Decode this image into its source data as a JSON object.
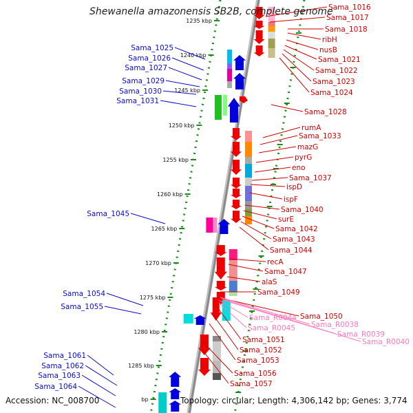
{
  "title": "Shewanella amazonensis SB2B, complete genome",
  "accession_text": "Accession: NC_008700",
  "topology_text": "Topology: circular; Length: 4,306,142 bp; Genes: 3,774",
  "colors": {
    "left_label": "#0a0acc",
    "right_label": "#d00000",
    "rna_label": "#ff77bb",
    "backbone": "#8a8a8a",
    "dotted_track": "#1a8a1a",
    "tick": "#1a8a1a"
  },
  "bp_ticks": [
    "1235 kbp",
    "1240 kbp",
    "1245 kbp",
    "1250 kbp",
    "1255 kbp",
    "1260 kbp",
    "1265 kbp",
    "1270 kbp",
    "1275 kbp",
    "1280 kbp",
    "1285 kbp",
    "bp"
  ],
  "left_genes": [
    "Sama_1025",
    "Sama_1026",
    "Sama_1027",
    "Sama_1029",
    "Sama_1030",
    "Sama_1031",
    "Sama_1045",
    "Sama_1054",
    "Sama_1055",
    "Sama_1061",
    "Sama_1062",
    "Sama_1063",
    "Sama_1064"
  ],
  "right_genes": [
    "Sama_1016",
    "Sama_1017",
    "Sama_1018",
    "ribH",
    "nusB",
    "Sama_1021",
    "Sama_1022",
    "Sama_1023",
    "Sama_1024",
    "Sama_1028",
    "rumA",
    "Sama_1033",
    "mazG",
    "pyrG",
    "eno",
    "Sama_1037",
    "ispD",
    "ispF",
    "Sama_1040",
    "surE",
    "Sama_1042",
    "Sama_1043",
    "Sama_1044",
    "recA",
    "Sama_1047",
    "alaS",
    "Sama_1049",
    "Sama_1050",
    "Sama_1051",
    "Sama_1052",
    "Sama_1053",
    "Sama_1056",
    "Sama_1057"
  ],
  "rna_genes": [
    "Sama_R0044",
    "Sama_R0045",
    "Sama_R0038",
    "Sama_R0039",
    "Sama_R0040"
  ]
}
